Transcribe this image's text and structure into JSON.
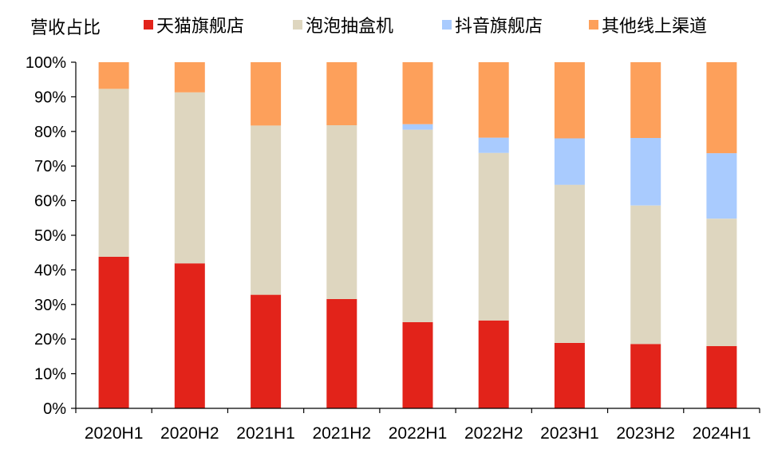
{
  "chart_data": {
    "type": "bar",
    "stacked": true,
    "ylabel": "营收占比",
    "ylim": [
      0,
      100
    ],
    "ytick_labels": [
      "0%",
      "10%",
      "20%",
      "30%",
      "40%",
      "50%",
      "60%",
      "70%",
      "80%",
      "90%",
      "100%"
    ],
    "categories": [
      "2020H1",
      "2020H2",
      "2021H1",
      "2021H2",
      "2022H1",
      "2022H2",
      "2023H1",
      "2023H2",
      "2024H1"
    ],
    "legend_position": "top",
    "grid": false,
    "series": [
      {
        "name": "天猫旗舰店",
        "color": "#e2231a",
        "values": [
          43.8,
          41.9,
          32.8,
          31.6,
          24.9,
          25.4,
          18.9,
          18.6,
          18.0
        ]
      },
      {
        "name": "泡泡抽盒机",
        "color": "#ded6bf",
        "values": [
          48.5,
          49.4,
          48.9,
          50.2,
          55.6,
          48.4,
          45.7,
          40.0,
          36.8
        ]
      },
      {
        "name": "抖音旗舰店",
        "color": "#a9cbfe",
        "values": [
          0.0,
          0.0,
          0.0,
          0.0,
          1.6,
          4.4,
          13.4,
          19.5,
          18.9
        ]
      },
      {
        "name": "其他线上渠道",
        "color": "#fda05b",
        "values": [
          7.7,
          8.7,
          18.3,
          18.2,
          17.9,
          21.8,
          22.0,
          21.9,
          26.3
        ]
      }
    ]
  }
}
